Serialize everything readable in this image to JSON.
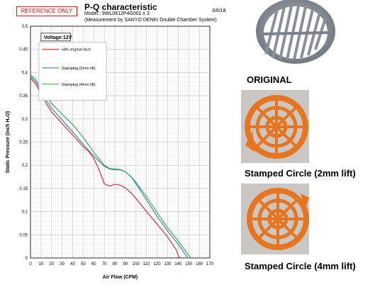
{
  "header": {
    "badge": "REFERENCE ONLY",
    "title": "P-Q characteristic",
    "model": "Model : 9WL0812P4G001  x 3",
    "subtitle": "(Measurement by SANYO DENKI  Double Chamber System)",
    "date": "3/6/18"
  },
  "chart_data": {
    "type": "line",
    "title": "P-Q characteristic",
    "xlabel": "Air Flow (CFM)",
    "ylabel": "Static Pressure (inch H₂O)",
    "annotation": "Voltage:12V",
    "xlim": [
      0,
      170
    ],
    "ylim": [
      0,
      0.5
    ],
    "xticks": [
      "0",
      "10",
      "20",
      "30",
      "40",
      "50",
      "60",
      "70",
      "80",
      "90",
      "100",
      "110",
      "120",
      "130",
      "140",
      "150",
      "160",
      "170"
    ],
    "yticks": [
      "0",
      "0.05",
      "0.1",
      "0.15",
      "0.2",
      "0.25",
      "0.3",
      "0.35",
      "0.4",
      "0.45",
      "0.5"
    ],
    "grid": true,
    "legend": "top-left",
    "series": [
      {
        "name": "with original duct",
        "color": "#e0202a",
        "points": [
          [
            0,
            0.388
          ],
          [
            5,
            0.375
          ],
          [
            10,
            0.355
          ],
          [
            15,
            0.333
          ],
          [
            20,
            0.315
          ],
          [
            30,
            0.29
          ],
          [
            40,
            0.265
          ],
          [
            50,
            0.24
          ],
          [
            55,
            0.23
          ],
          [
            60,
            0.215
          ],
          [
            65,
            0.19
          ],
          [
            70,
            0.16
          ],
          [
            75,
            0.155
          ],
          [
            80,
            0.159
          ],
          [
            85,
            0.157
          ],
          [
            90,
            0.151
          ],
          [
            95,
            0.141
          ],
          [
            100,
            0.128
          ],
          [
            110,
            0.1
          ],
          [
            120,
            0.073
          ],
          [
            130,
            0.045
          ],
          [
            138,
            0.018
          ],
          [
            141,
            0.0
          ]
        ]
      },
      {
        "name": "Stamping (2mm lift)",
        "color": "#3a73b8",
        "points": [
          [
            0,
            0.392
          ],
          [
            5,
            0.38
          ],
          [
            10,
            0.36
          ],
          [
            15,
            0.34
          ],
          [
            20,
            0.323
          ],
          [
            30,
            0.298
          ],
          [
            40,
            0.272
          ],
          [
            50,
            0.245
          ],
          [
            60,
            0.22
          ],
          [
            70,
            0.198
          ],
          [
            75,
            0.192
          ],
          [
            80,
            0.19
          ],
          [
            85,
            0.19
          ],
          [
            90,
            0.186
          ],
          [
            95,
            0.176
          ],
          [
            100,
            0.16
          ],
          [
            110,
            0.125
          ],
          [
            120,
            0.09
          ],
          [
            130,
            0.058
          ],
          [
            140,
            0.03
          ],
          [
            146,
            0.01
          ],
          [
            149,
            0.0
          ]
        ]
      },
      {
        "name": "Stamping (4mm lift)",
        "color": "#2aa84a",
        "points": [
          [
            0,
            0.395
          ],
          [
            5,
            0.385
          ],
          [
            10,
            0.367
          ],
          [
            15,
            0.35
          ],
          [
            20,
            0.333
          ],
          [
            30,
            0.31
          ],
          [
            40,
            0.288
          ],
          [
            50,
            0.26
          ],
          [
            60,
            0.228
          ],
          [
            70,
            0.2
          ],
          [
            75,
            0.193
          ],
          [
            80,
            0.192
          ],
          [
            85,
            0.191
          ],
          [
            90,
            0.186
          ],
          [
            95,
            0.176
          ],
          [
            100,
            0.163
          ],
          [
            110,
            0.132
          ],
          [
            120,
            0.098
          ],
          [
            130,
            0.065
          ],
          [
            140,
            0.037
          ],
          [
            148,
            0.012
          ],
          [
            152,
            0.0
          ]
        ]
      }
    ]
  },
  "photos": [
    {
      "caption": "ORIGINAL"
    },
    {
      "caption": "Stamped Circle (2mm lift)"
    },
    {
      "caption": "Stamped Circle (4mm lift)"
    }
  ]
}
